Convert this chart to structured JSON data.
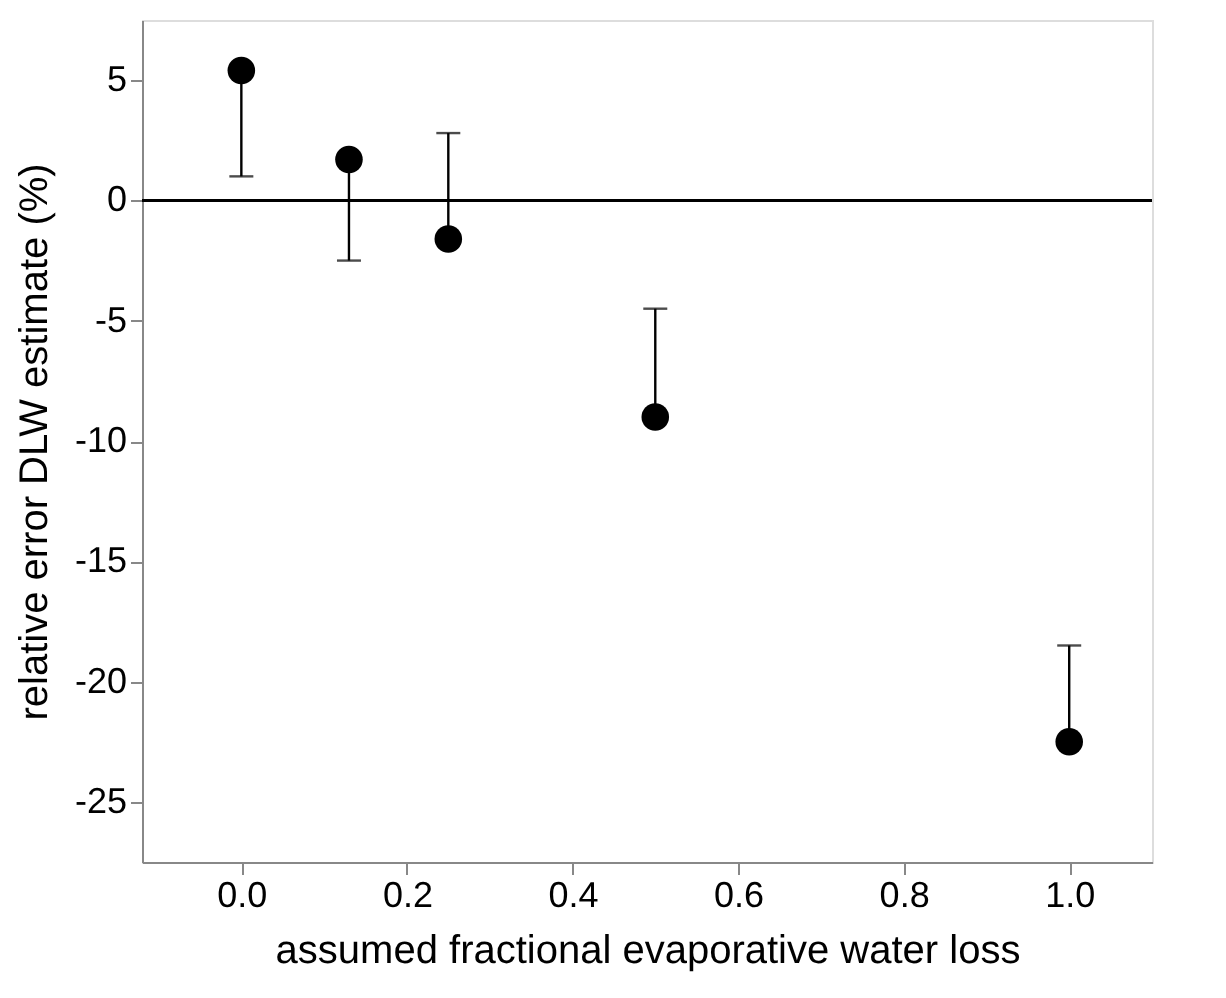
{
  "chart_data": {
    "type": "scatter",
    "xlabel": "assumed fractional evaporative water loss",
    "ylabel": "relative error DLW estimate (%)",
    "x": [
      0.0,
      0.13,
      0.25,
      0.5,
      1.0
    ],
    "values": [
      5.4,
      1.7,
      -1.6,
      -9.0,
      -22.5
    ],
    "errors": [
      [
        1.0,
        5.4
      ],
      [
        -2.5,
        1.7
      ],
      [
        -1.6,
        2.8
      ],
      [
        -9.0,
        -4.5
      ],
      [
        -22.5,
        -18.5
      ]
    ],
    "color": "#000000",
    "marker": "circle",
    "xlim": [
      -0.12,
      1.1
    ],
    "xticks": [
      {
        "value": 0,
        "label": "0.0"
      },
      0.2,
      0.4,
      0.6,
      0.8,
      {
        "value": 1,
        "label": "1.0"
      }
    ],
    "ylim": [
      -27.5,
      7.5
    ],
    "yticks": [
      -25,
      -20,
      -15,
      -10,
      -5,
      0,
      5
    ],
    "ref_lines": [
      {
        "axis": "y",
        "value": 0,
        "color": "#000000"
      }
    ],
    "grid": false
  }
}
